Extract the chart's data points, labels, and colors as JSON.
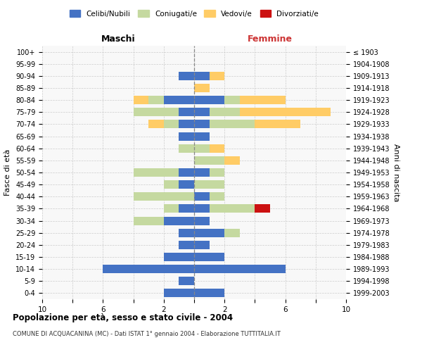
{
  "age_groups": [
    "0-4",
    "5-9",
    "10-14",
    "15-19",
    "20-24",
    "25-29",
    "30-34",
    "35-39",
    "40-44",
    "45-49",
    "50-54",
    "55-59",
    "60-64",
    "65-69",
    "70-74",
    "75-79",
    "80-84",
    "85-89",
    "90-94",
    "95-99",
    "100+"
  ],
  "birth_years": [
    "1999-2003",
    "1994-1998",
    "1989-1993",
    "1984-1988",
    "1979-1983",
    "1974-1978",
    "1969-1973",
    "1964-1968",
    "1959-1963",
    "1954-1958",
    "1949-1953",
    "1944-1948",
    "1939-1943",
    "1934-1938",
    "1929-1933",
    "1924-1928",
    "1919-1923",
    "1914-1918",
    "1909-1913",
    "1904-1908",
    "≤ 1903"
  ],
  "maschi": {
    "celibi": [
      2,
      1,
      6,
      2,
      1,
      1,
      2,
      1,
      0,
      1,
      1,
      0,
      0,
      1,
      1,
      1,
      2,
      0,
      1,
      0,
      0
    ],
    "coniugati": [
      0,
      0,
      0,
      0,
      0,
      0,
      2,
      1,
      4,
      1,
      3,
      0,
      1,
      0,
      1,
      3,
      1,
      0,
      0,
      0,
      0
    ],
    "vedovi": [
      0,
      0,
      0,
      0,
      0,
      0,
      0,
      0,
      0,
      0,
      0,
      0,
      0,
      0,
      1,
      0,
      1,
      0,
      0,
      0,
      0
    ],
    "divorziati": [
      0,
      0,
      0,
      0,
      0,
      0,
      0,
      0,
      0,
      0,
      0,
      0,
      0,
      0,
      0,
      0,
      0,
      0,
      0,
      0,
      0
    ]
  },
  "femmine": {
    "nubili": [
      2,
      0,
      6,
      2,
      1,
      2,
      1,
      1,
      1,
      0,
      1,
      0,
      0,
      1,
      1,
      1,
      2,
      0,
      1,
      0,
      0
    ],
    "coniugate": [
      0,
      0,
      0,
      0,
      0,
      1,
      0,
      3,
      1,
      2,
      1,
      2,
      1,
      0,
      3,
      2,
      1,
      0,
      0,
      0,
      0
    ],
    "vedove": [
      0,
      0,
      0,
      0,
      0,
      0,
      0,
      0,
      0,
      0,
      0,
      1,
      1,
      0,
      3,
      6,
      3,
      1,
      1,
      0,
      0
    ],
    "divorziate": [
      0,
      0,
      0,
      0,
      0,
      0,
      0,
      1,
      0,
      0,
      0,
      0,
      0,
      0,
      0,
      0,
      0,
      0,
      0,
      0,
      0
    ]
  },
  "color_celibi": "#4472C4",
  "color_coniugati": "#C5D9A0",
  "color_vedovi": "#FFCC66",
  "color_divorziati": "#CC1111",
  "title": "Popolazione per età, sesso e stato civile - 2004",
  "subtitle": "COMUNE DI ACQUACANINA (MC) - Dati ISTAT 1° gennaio 2004 - Elaborazione TUTTITALIA.IT",
  "xlabel_left": "Maschi",
  "xlabel_right": "Femmine",
  "ylabel_left": "Fasce di età",
  "ylabel_right": "Anni di nascita",
  "xmax": 10,
  "xtick_labels": [
    "10",
    "",
    "6",
    "",
    "2",
    "",
    "2",
    "",
    "6",
    "",
    "10"
  ],
  "xtick_vals": [
    -10,
    -8,
    -6,
    -4,
    -2,
    0,
    2,
    4,
    6,
    8,
    10
  ],
  "legend_labels": [
    "Celibi/Nubili",
    "Coniugati/e",
    "Vedovi/e",
    "Divorziati/e"
  ]
}
